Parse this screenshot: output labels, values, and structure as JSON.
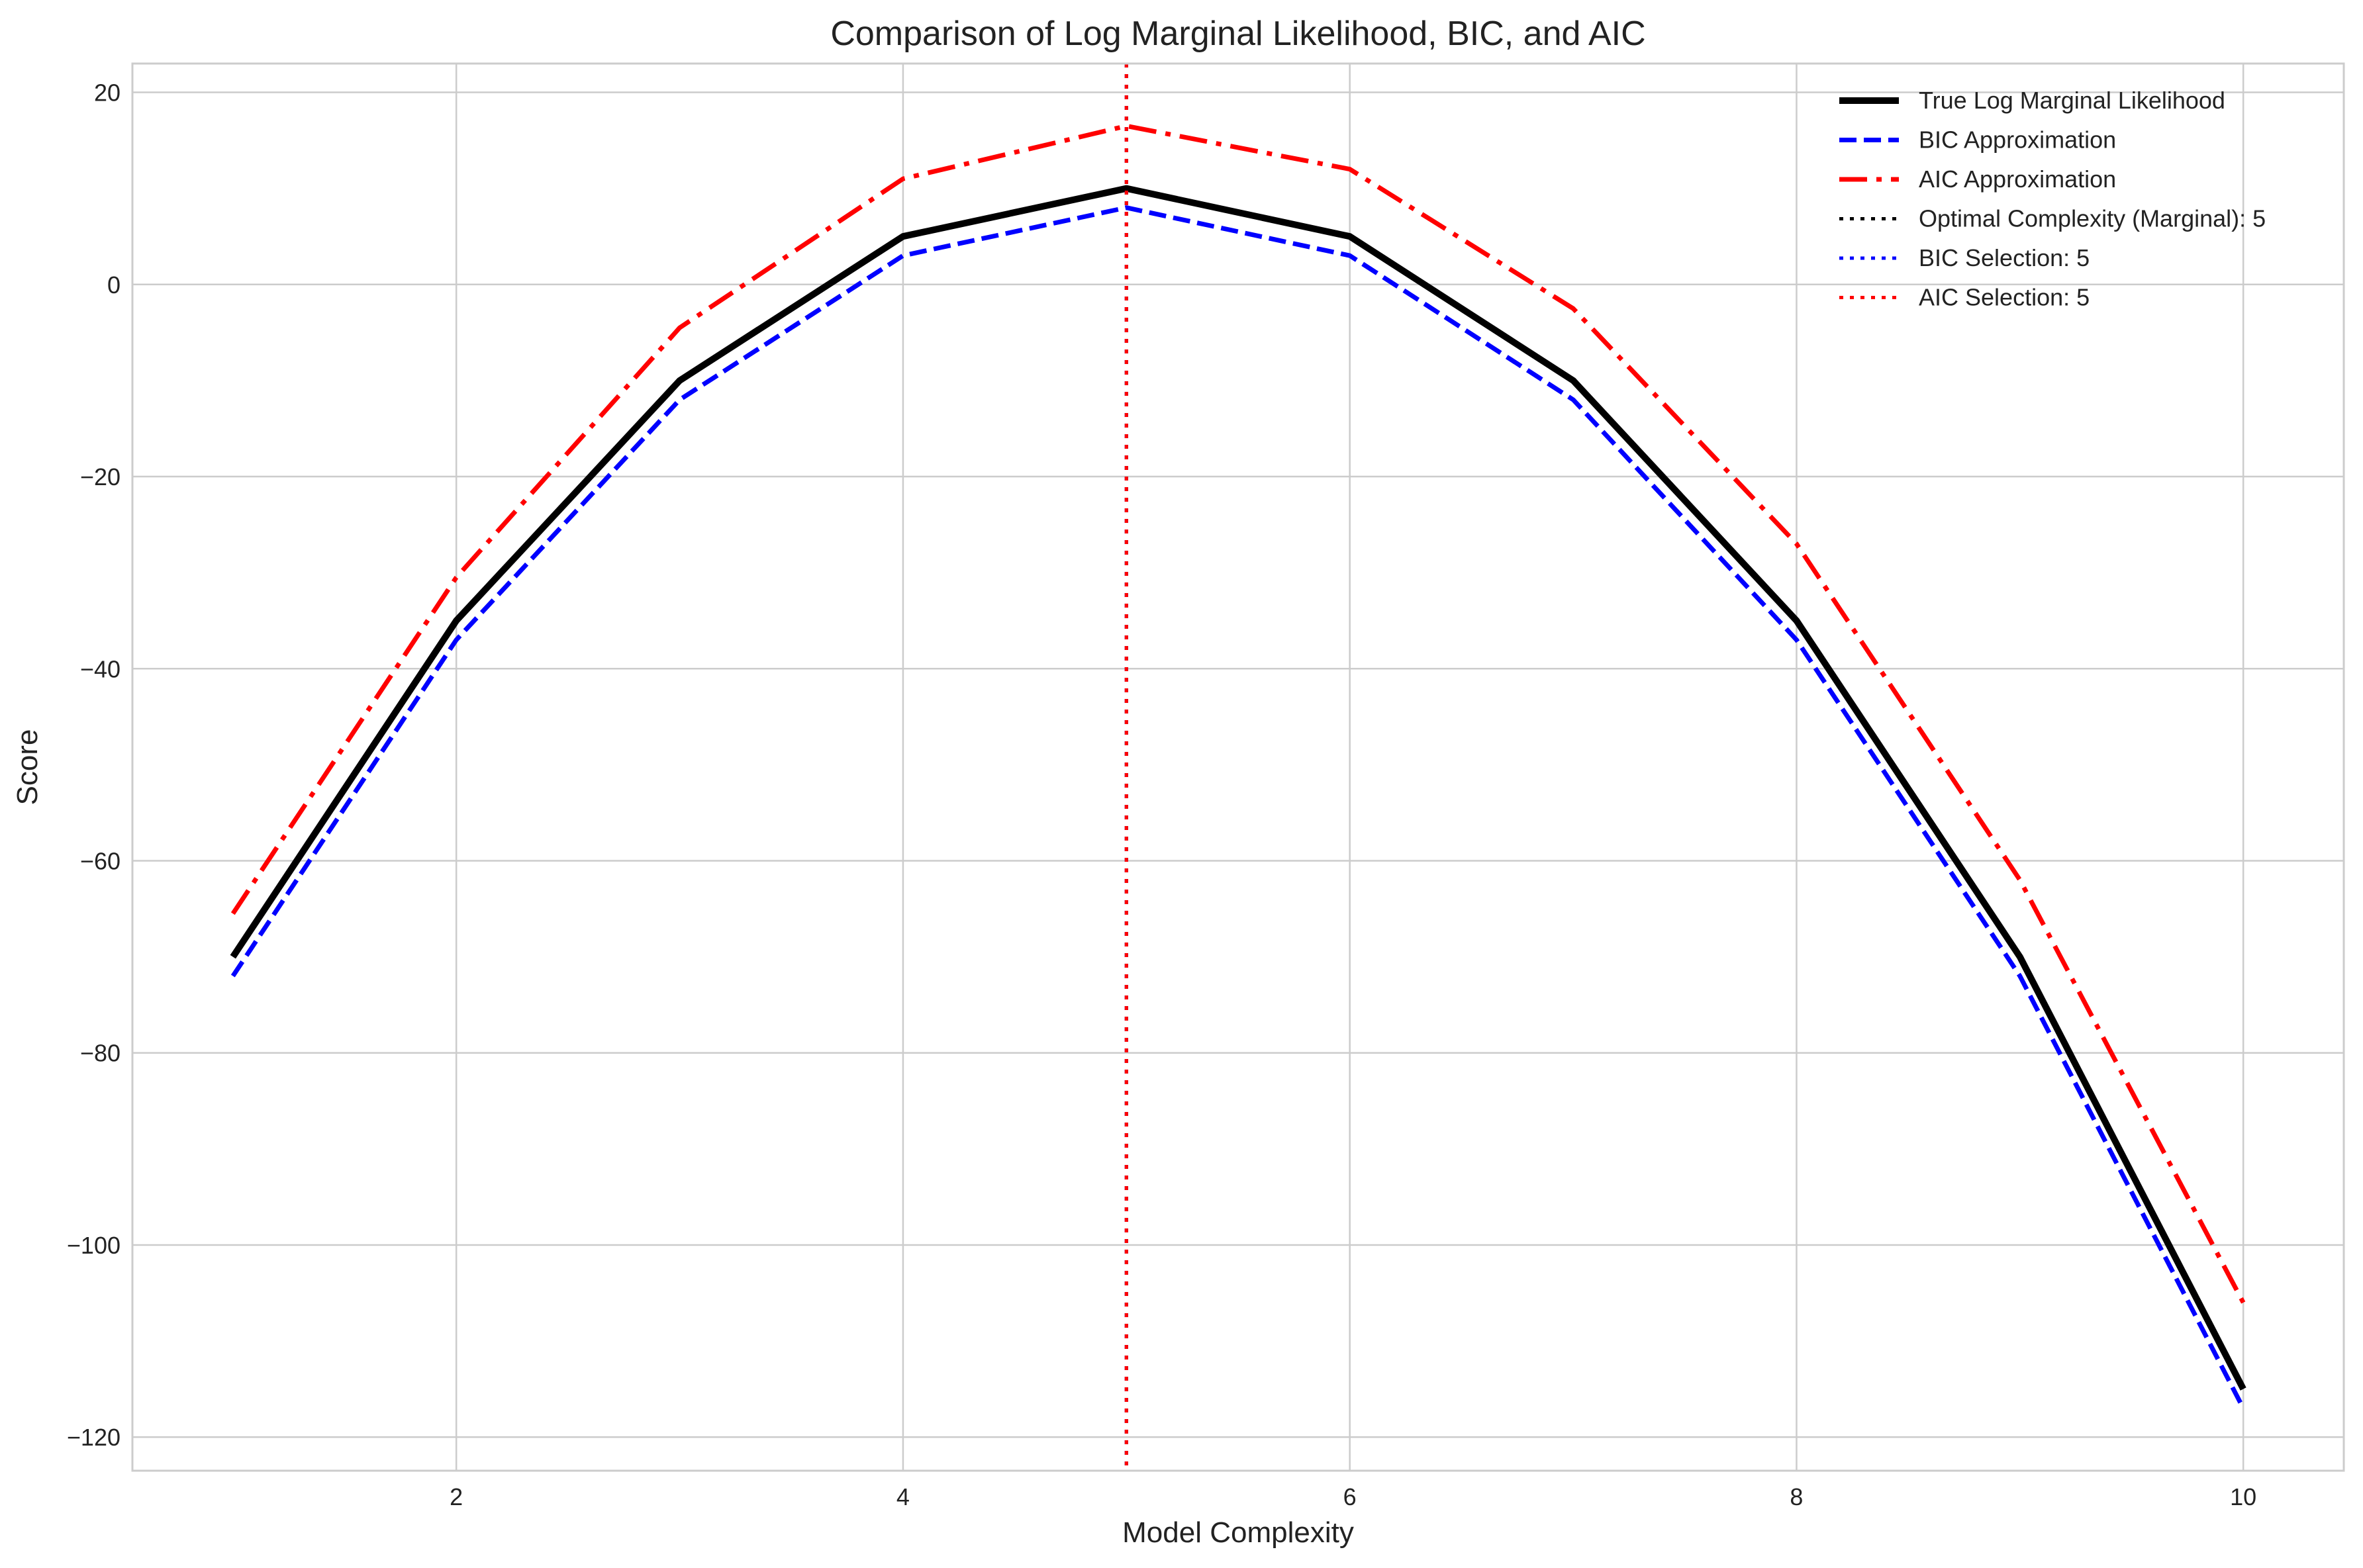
{
  "chart_data": {
    "type": "line",
    "title": "Comparison of Log Marginal Likelihood, BIC, and AIC",
    "xlabel": "Model Complexity",
    "ylabel": "Score",
    "xlim": [
      0.55,
      10.45
    ],
    "ylim": [
      -123.5,
      23.0
    ],
    "xticks": [
      2,
      4,
      6,
      8,
      10
    ],
    "yticks": [
      -120,
      -100,
      -80,
      -60,
      -40,
      -20,
      0,
      20
    ],
    "grid": true,
    "legend_position": "top-right",
    "x": [
      1,
      2,
      3,
      4,
      5,
      6,
      7,
      8,
      9,
      10
    ],
    "series": [
      {
        "name": "True Log Marginal Likelihood",
        "color": "#000000",
        "style": "solid",
        "values": [
          -70,
          -35,
          -10,
          5,
          10,
          5,
          -10,
          -35,
          -70,
          -115
        ]
      },
      {
        "name": "BIC Approximation",
        "color": "#0000ff",
        "style": "dashed",
        "values": [
          -72,
          -37,
          -12,
          3,
          8,
          3,
          -12,
          -37,
          -72,
          -117
        ]
      },
      {
        "name": "AIC Approximation",
        "color": "#ff0000",
        "style": "dashdot",
        "values": [
          -65.5,
          -30.5,
          -4.5,
          11,
          16.5,
          12,
          -2.5,
          -27,
          -62,
          -106
        ]
      }
    ],
    "vlines": [
      {
        "name": "Optimal Complexity (Marginal): 5",
        "x": 5,
        "color": "#000000",
        "style": "dotted"
      },
      {
        "name": "BIC Selection: 5",
        "x": 5,
        "color": "#0000ff",
        "style": "dotted"
      },
      {
        "name": "AIC Selection: 5",
        "x": 5,
        "color": "#ff0000",
        "style": "dotted"
      }
    ]
  }
}
